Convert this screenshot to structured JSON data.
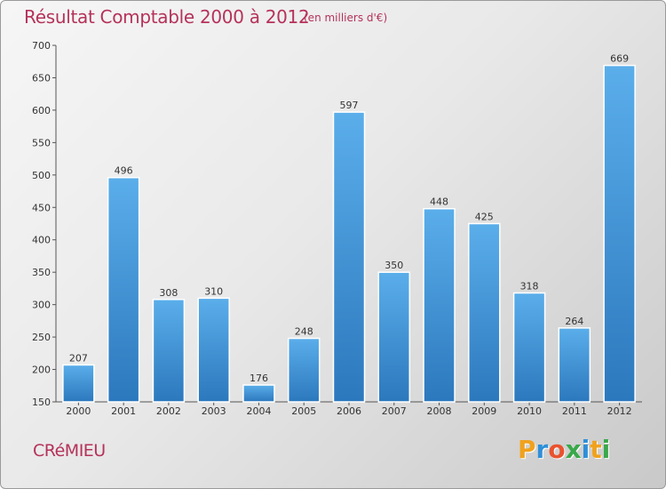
{
  "title": "Résultat Comptable 2000 à 2012",
  "subtitle": "(en milliers d'€)",
  "commune": "CRéMIEU",
  "logo": {
    "text": "Proxiti",
    "letters": [
      "P",
      "r",
      "o",
      "x",
      "i",
      "t",
      "i"
    ],
    "colors": [
      "#f0a21e",
      "#2f8fd8",
      "#e8542f",
      "#3aa84a",
      "#2f8fd8",
      "#f0a21e",
      "#3aa84a"
    ]
  },
  "colors": {
    "bar": "#3f97db",
    "bar_light": "#5aaeea",
    "bar_dark": "#2c78bd",
    "title": "#b5325a",
    "axis": "#555555"
  },
  "chart_data": {
    "type": "bar",
    "title": "Résultat Comptable 2000 à 2012",
    "subtitle": "(en milliers d'€)",
    "categories": [
      "2000",
      "2001",
      "2002",
      "2003",
      "2004",
      "2005",
      "2006",
      "2007",
      "2008",
      "2009",
      "2010",
      "2011",
      "2012"
    ],
    "values": [
      207,
      496,
      308,
      310,
      176,
      248,
      597,
      350,
      448,
      425,
      318,
      264,
      669
    ],
    "data_labels": [
      "207",
      "496",
      "308",
      "310",
      "176",
      "248",
      "597",
      "350",
      "448",
      "425",
      "318",
      "264",
      "669"
    ],
    "ylim": [
      150,
      700
    ],
    "yticks": [
      150,
      200,
      250,
      300,
      350,
      400,
      450,
      500,
      550,
      600,
      650,
      700
    ],
    "ytick_labels": [
      "150",
      "200",
      "250",
      "300",
      "350",
      "400",
      "450",
      "500",
      "550",
      "600",
      "650",
      "700"
    ],
    "grid": false,
    "legend": "none"
  }
}
